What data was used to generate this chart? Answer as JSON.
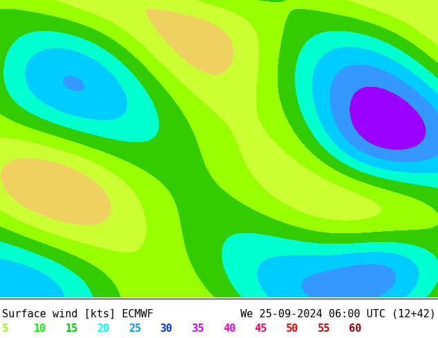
{
  "title_left": "Surface wind [kts] ECMWF",
  "title_right": "We 25-09-2024 06:00 UTC (12+42)",
  "legend_values": [
    5,
    10,
    15,
    20,
    25,
    30,
    35,
    40,
    45,
    50,
    55,
    60
  ],
  "legend_colors": [
    "#99ff00",
    "#00ff00",
    "#00cc00",
    "#00ffff",
    "#0099ff",
    "#0033ff",
    "#cc00ff",
    "#ff00cc",
    "#ff0066",
    "#ff0000",
    "#cc0000",
    "#990000"
  ],
  "wind_speed_levels": [
    0,
    5,
    10,
    15,
    20,
    25,
    30,
    35,
    40,
    45,
    50,
    55,
    60
  ],
  "colormap_colors": [
    "#ffcc00",
    "#99ff00",
    "#00ff00",
    "#00cc00",
    "#00ffff",
    "#0099ff",
    "#0033ff",
    "#cc00ff",
    "#ff00cc",
    "#ff0066",
    "#ff0000",
    "#cc0000"
  ],
  "bg_color": "#ccff33",
  "border_color": "#000000",
  "text_color": "#000000",
  "font_size_title": 11,
  "font_size_legend": 11,
  "fig_width": 6.34,
  "fig_height": 4.9,
  "dpi": 100
}
